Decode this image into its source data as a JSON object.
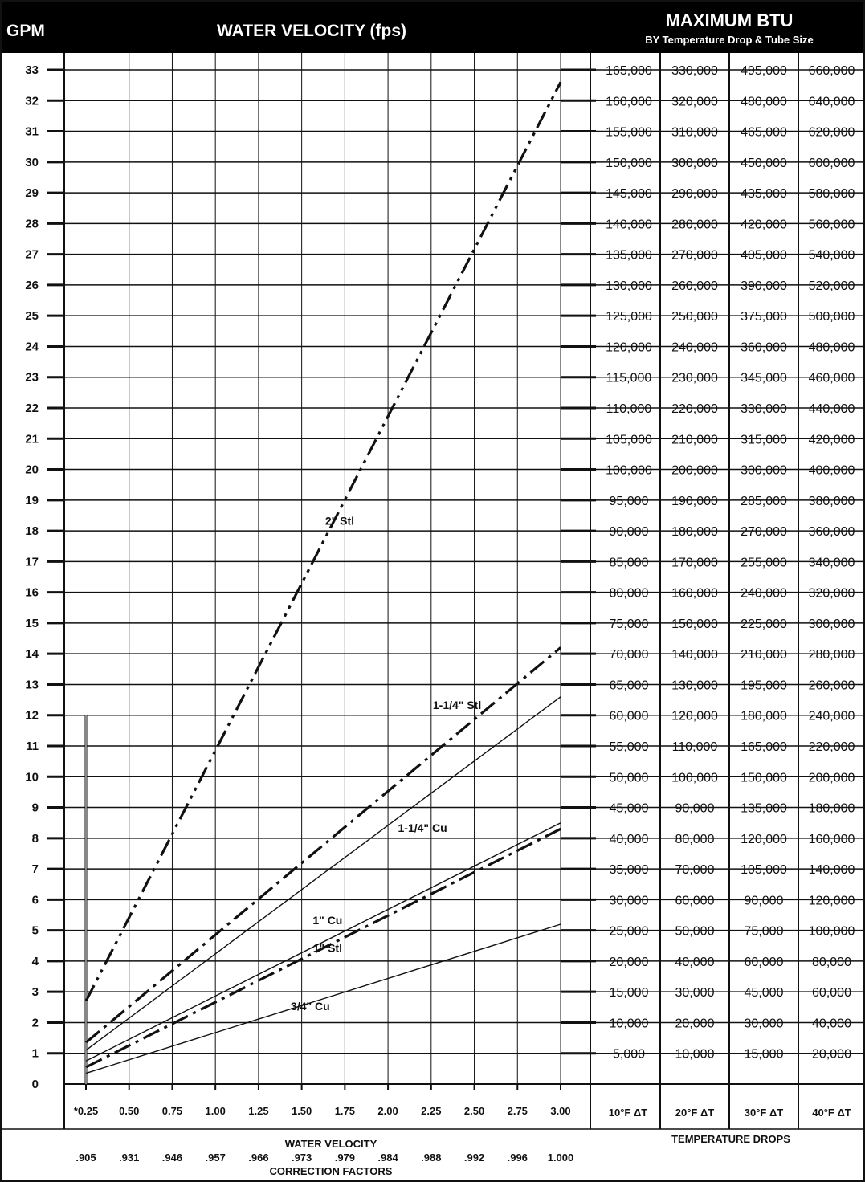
{
  "header": {
    "gpm_label": "GPM",
    "velocity_label": "WATER VELOCITY (fps)",
    "btu_title": "MAXIMUM BTU",
    "btu_subtitle": "BY Temperature Drop & Tube Size"
  },
  "footer": {
    "x_axis_title": "WATER VELOCITY",
    "correction_title": "CORRECTION FACTORS",
    "temp_drops_title": "TEMPERATURE DROPS"
  },
  "colors": {
    "header_bg": "#000000",
    "lines": "#111111",
    "background": "#ffffff"
  },
  "chart_data": {
    "type": "line",
    "xlabel": "WATER VELOCITY",
    "ylabel": "GPM",
    "xlim": [
      0.25,
      3.0
    ],
    "ylim": [
      0,
      33
    ],
    "x_ticks": [
      0.25,
      0.5,
      0.75,
      1.0,
      1.25,
      1.5,
      1.75,
      2.0,
      2.25,
      2.5,
      2.75,
      3.0
    ],
    "x_tick_labels": [
      "*0.25",
      "0.50",
      "0.75",
      "1.00",
      "1.25",
      "1.50",
      "1.75",
      "2.00",
      "2.25",
      "2.50",
      "2.75",
      "3.00"
    ],
    "correction_factors": [
      ".905",
      ".931",
      ".946",
      ".957",
      ".966",
      ".973",
      ".979",
      ".984",
      ".988",
      ".992",
      ".996",
      "1.000"
    ],
    "y_ticks": [
      0,
      1,
      2,
      3,
      4,
      5,
      6,
      7,
      8,
      9,
      10,
      11,
      12,
      13,
      14,
      15,
      16,
      17,
      18,
      19,
      20,
      21,
      22,
      23,
      24,
      25,
      26,
      27,
      28,
      29,
      30,
      31,
      32,
      33
    ],
    "grid": true,
    "reference_line": {
      "x": 0.25,
      "y_from": 0,
      "y_to": 12
    },
    "series": [
      {
        "name": "2\" Stl",
        "style": "dash-dot-dot",
        "x": [
          0.25,
          3.0
        ],
        "y": [
          2.7,
          32.6
        ],
        "label_at": [
          1.72,
          18.2
        ]
      },
      {
        "name": "1-1/4\" Stl",
        "style": "dash-dot",
        "x": [
          0.25,
          3.0
        ],
        "y": [
          1.35,
          14.2
        ],
        "label_at": [
          2.4,
          12.2
        ]
      },
      {
        "name": "1-1/4\" Cu",
        "style": "solid",
        "x": [
          0.25,
          3.0
        ],
        "y": [
          1.1,
          12.6
        ],
        "label_at": [
          2.2,
          8.2
        ]
      },
      {
        "name": "1\" Cu",
        "style": "solid",
        "x": [
          0.25,
          3.0
        ],
        "y": [
          0.75,
          8.5
        ],
        "label_at": [
          1.65,
          5.2
        ]
      },
      {
        "name": "1\" Stl",
        "style": "dash-dot",
        "x": [
          0.25,
          3.0
        ],
        "y": [
          0.55,
          8.3
        ],
        "label_at": [
          1.65,
          4.3
        ]
      },
      {
        "name": "3/4\" Cu",
        "style": "solid",
        "x": [
          0.25,
          3.0
        ],
        "y": [
          0.35,
          5.2
        ],
        "label_at": [
          1.55,
          2.4
        ]
      }
    ],
    "btu_table": {
      "columns": [
        "10°F ΔT",
        "20°F ΔT",
        "30°F ΔT",
        "40°F ΔT"
      ],
      "rows": [
        [
          "5,000",
          "10,000",
          "15,000",
          "20,000"
        ],
        [
          "10,000",
          "20,000",
          "30,000",
          "40,000"
        ],
        [
          "15,000",
          "30,000",
          "45,000",
          "60,000"
        ],
        [
          "20,000",
          "40,000",
          "60,000",
          "80,000"
        ],
        [
          "25,000",
          "50,000",
          "75,000",
          "100,000"
        ],
        [
          "30,000",
          "60,000",
          "90,000",
          "120,000"
        ],
        [
          "35,000",
          "70,000",
          "105,000",
          "140,000"
        ],
        [
          "40,000",
          "80,000",
          "120,000",
          "160,000"
        ],
        [
          "45,000",
          "90,000",
          "135,000",
          "180,000"
        ],
        [
          "50,000",
          "100,000",
          "150,000",
          "200,000"
        ],
        [
          "55,000",
          "110,000",
          "165,000",
          "220,000"
        ],
        [
          "60,000",
          "120,000",
          "180,000",
          "240,000"
        ],
        [
          "65,000",
          "130,000",
          "195,000",
          "260,000"
        ],
        [
          "70,000",
          "140,000",
          "210,000",
          "280,000"
        ],
        [
          "75,000",
          "150,000",
          "225,000",
          "300,000"
        ],
        [
          "80,000",
          "160,000",
          "240,000",
          "320,000"
        ],
        [
          "85,000",
          "170,000",
          "255,000",
          "340,000"
        ],
        [
          "90,000",
          "180,000",
          "270,000",
          "360,000"
        ],
        [
          "95,000",
          "190,000",
          "285,000",
          "380,000"
        ],
        [
          "100,000",
          "200,000",
          "300,000",
          "400,000"
        ],
        [
          "105,000",
          "210,000",
          "315,000",
          "420,000"
        ],
        [
          "110,000",
          "220,000",
          "330,000",
          "440,000"
        ],
        [
          "115,000",
          "230,000",
          "345,000",
          "460,000"
        ],
        [
          "120,000",
          "240,000",
          "360,000",
          "480,000"
        ],
        [
          "125,000",
          "250,000",
          "375,000",
          "500,000"
        ],
        [
          "130,000",
          "260,000",
          "390,000",
          "520,000"
        ],
        [
          "135,000",
          "270,000",
          "405,000",
          "540,000"
        ],
        [
          "140,000",
          "280,000",
          "420,000",
          "560,000"
        ],
        [
          "145,000",
          "290,000",
          "435,000",
          "580,000"
        ],
        [
          "150,000",
          "300,000",
          "450,000",
          "600,000"
        ],
        [
          "155,000",
          "310,000",
          "465,000",
          "620,000"
        ],
        [
          "160,000",
          "320,000",
          "480,000",
          "640,000"
        ],
        [
          "165,000",
          "330,000",
          "495,000",
          "660,000"
        ]
      ]
    }
  }
}
